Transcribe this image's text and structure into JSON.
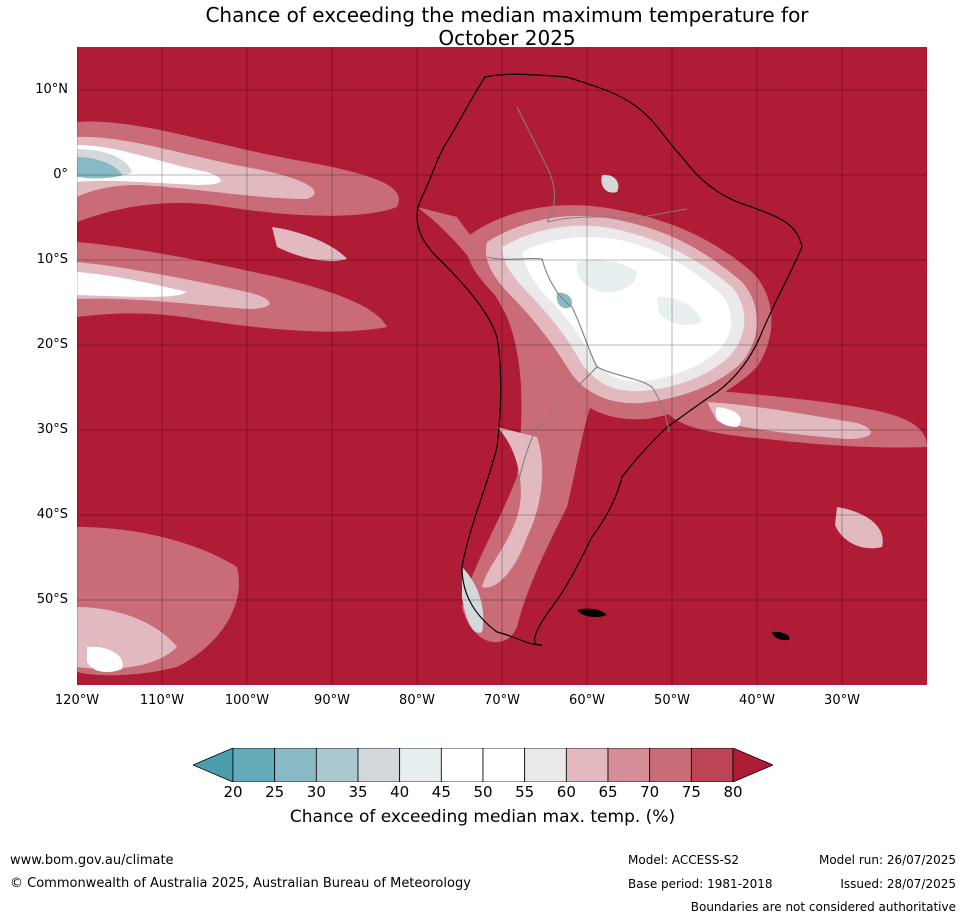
{
  "title": {
    "line1": "Chance of exceeding the median maximum temperature for",
    "line2": "October 2025"
  },
  "map": {
    "lat_labels": [
      "10°N",
      "0°",
      "10°S",
      "20°S",
      "30°S",
      "40°S",
      "50°S"
    ],
    "lon_labels": [
      "120°W",
      "110°W",
      "100°W",
      "90°W",
      "80°W",
      "70°W",
      "60°W",
      "50°W",
      "40°W",
      "30°W"
    ],
    "extent": {
      "lon": [
        -120,
        -20
      ],
      "lat": [
        -60,
        15
      ]
    },
    "background_color": "#b01b36"
  },
  "colorbar": {
    "ticks": [
      "20",
      "25",
      "30",
      "35",
      "40",
      "45",
      "50",
      "55",
      "60",
      "65",
      "70",
      "75",
      "80"
    ],
    "colors": [
      "#65acba",
      "#8ab9c6",
      "#abc8cf",
      "#d3d9db",
      "#e8eff1",
      "#ffffff",
      "#ffffff",
      "#ebe9ea",
      "#e2b9bf",
      "#d58d97",
      "#c96c77",
      "#bd4454"
    ],
    "under_color": "#4b9eac",
    "over_color": "#b01b36",
    "label": "Chance of exceeding median max. temp. (%)"
  },
  "footer": {
    "website": "www.bom.gov.au/climate",
    "copyright": "© Commonwealth of Australia 2025, Australian Bureau of Meteorology",
    "model": "Model: ACCESS-S2",
    "base_period": "Base period: 1981-2018",
    "model_run": "Model run: 26/07/2025",
    "issued": "Issued: 28/07/2025",
    "disclaimer": "Boundaries are not considered authoritative"
  }
}
